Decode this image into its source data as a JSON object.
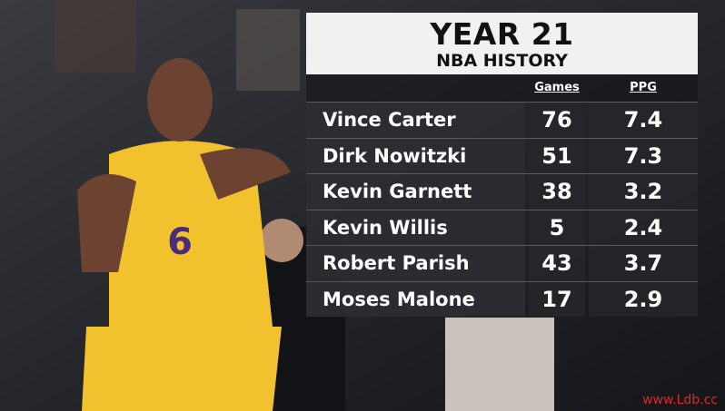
{
  "header": {
    "title": "YEAR 21",
    "subtitle": "NBA HISTORY"
  },
  "table": {
    "columns": [
      "Games",
      "PPG"
    ],
    "rows": [
      [
        "Vince Carter",
        76,
        7.4
      ],
      [
        "Dirk Nowitzki",
        51,
        7.3
      ],
      [
        "Kevin Garnett",
        38,
        3.2
      ],
      [
        "Kevin Willis",
        5,
        2.4
      ],
      [
        "Robert Parish",
        43,
        3.7
      ],
      [
        "Moses Malone",
        17,
        2.9
      ]
    ]
  },
  "watermark": "www.Ldb.cc"
}
